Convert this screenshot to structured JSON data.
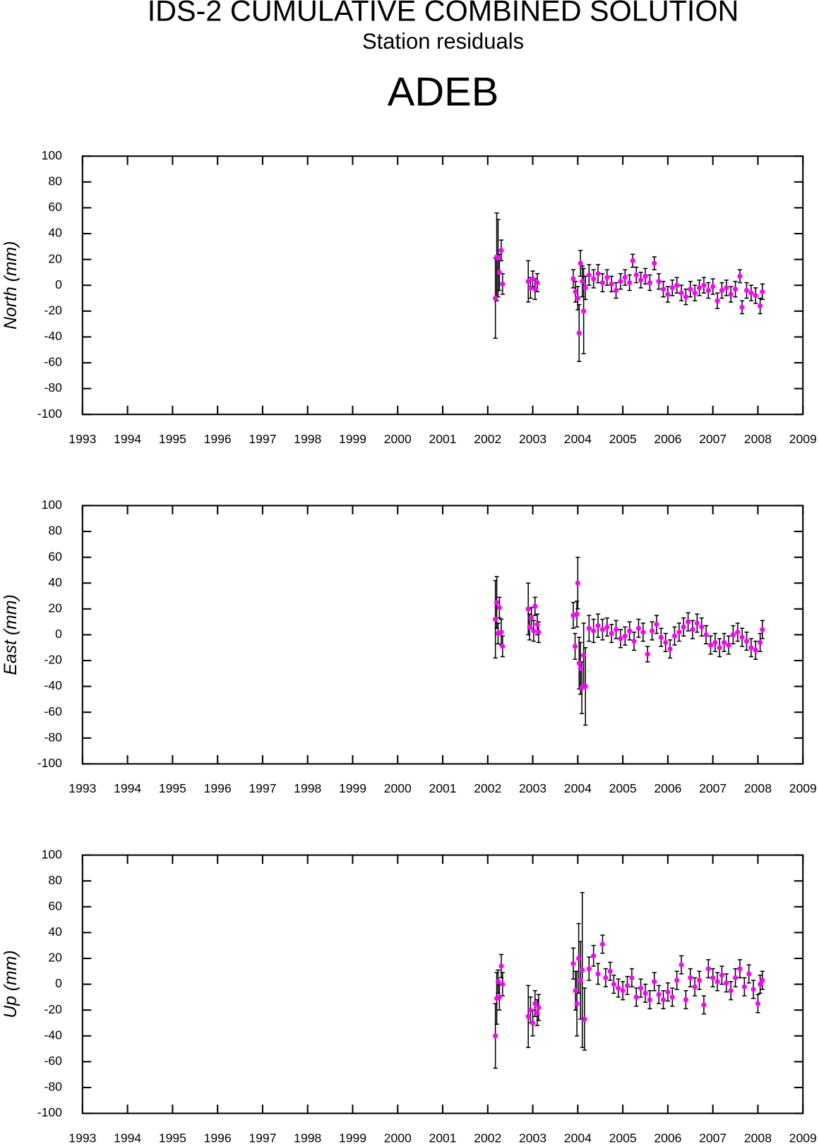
{
  "chart_data": [
    {
      "type": "scatter",
      "title": "IDS-2 CUMULATIVE COMBINED SOLUTION",
      "subtitle": "Station residuals",
      "station": "ADEB",
      "ylabel": "North (mm)",
      "color": "#ff00ff",
      "error_color": "#000000",
      "xlim": [
        1993,
        2009
      ],
      "xticks": [
        1993,
        1994,
        1995,
        1996,
        1997,
        1998,
        1999,
        2000,
        2001,
        2002,
        2003,
        2004,
        2005,
        2006,
        2007,
        2008,
        2009
      ],
      "ylim": [
        -100,
        100
      ],
      "yticks": [
        -100,
        -80,
        -60,
        -40,
        -20,
        0,
        20,
        40,
        60,
        80,
        100
      ],
      "x": [
        2002.17,
        2002.2,
        2002.23,
        2002.26,
        2002.3,
        2002.33,
        2002.9,
        2002.95,
        2003.0,
        2003.05,
        2003.1,
        2003.9,
        2003.95,
        2004.0,
        2004.03,
        2004.06,
        2004.1,
        2004.13,
        2004.17,
        2004.25,
        2004.35,
        2004.45,
        2004.55,
        2004.65,
        2004.75,
        2004.85,
        2004.95,
        2005.05,
        2005.15,
        2005.22,
        2005.3,
        2005.4,
        2005.5,
        2005.6,
        2005.7,
        2005.8,
        2005.9,
        2006.0,
        2006.1,
        2006.2,
        2006.3,
        2006.4,
        2006.5,
        2006.6,
        2006.7,
        2006.8,
        2006.9,
        2007.0,
        2007.1,
        2007.2,
        2007.3,
        2007.4,
        2007.5,
        2007.6,
        2007.65,
        2007.75,
        2007.85,
        2007.95,
        2008.05,
        2008.1
      ],
      "values": [
        -10,
        22,
        21,
        10,
        27,
        1,
        3,
        -2,
        5,
        -3,
        2,
        5,
        -5,
        -10,
        -37,
        17,
        3,
        -20,
        -2,
        8,
        5,
        9,
        2,
        6,
        1,
        -4,
        3,
        6,
        2,
        19,
        8,
        4,
        7,
        2,
        17,
        3,
        -3,
        -7,
        -2,
        0,
        -6,
        -9,
        -3,
        -6,
        -2,
        0,
        -4,
        -1,
        -12,
        -4,
        -2,
        -7,
        -3,
        7,
        -17,
        -4,
        -6,
        -8,
        -16,
        -5
      ],
      "errors": [
        31,
        34,
        30,
        14,
        8,
        8,
        16,
        8,
        6,
        8,
        7,
        7,
        8,
        9,
        22,
        10,
        12,
        33,
        9,
        8,
        7,
        7,
        7,
        6,
        6,
        6,
        6,
        6,
        6,
        5,
        6,
        6,
        6,
        6,
        5,
        6,
        6,
        6,
        6,
        6,
        6,
        6,
        6,
        6,
        6,
        6,
        6,
        6,
        6,
        6,
        6,
        6,
        6,
        5,
        5,
        6,
        6,
        6,
        6,
        6
      ]
    },
    {
      "type": "scatter",
      "ylabel": "East (mm)",
      "color": "#ff00ff",
      "error_color": "#000000",
      "xlim": [
        1993,
        2009
      ],
      "xticks": [
        1993,
        1994,
        1995,
        1996,
        1997,
        1998,
        1999,
        2000,
        2001,
        2002,
        2003,
        2004,
        2005,
        2006,
        2007,
        2008,
        2009
      ],
      "ylim": [
        -100,
        100
      ],
      "yticks": [
        -100,
        -80,
        -60,
        -40,
        -20,
        0,
        20,
        40,
        60,
        80,
        100
      ],
      "x": [
        2002.17,
        2002.2,
        2002.23,
        2002.26,
        2002.3,
        2002.33,
        2002.9,
        2002.93,
        2002.97,
        2003.02,
        2003.05,
        2003.1,
        2003.13,
        2003.9,
        2003.94,
        2003.98,
        2004.0,
        2004.03,
        2004.06,
        2004.09,
        2004.13,
        2004.17,
        2004.25,
        2004.35,
        2004.45,
        2004.55,
        2004.65,
        2004.75,
        2004.85,
        2004.95,
        2005.05,
        2005.15,
        2005.25,
        2005.35,
        2005.45,
        2005.55,
        2005.65,
        2005.75,
        2005.85,
        2005.95,
        2006.05,
        2006.15,
        2006.25,
        2006.35,
        2006.45,
        2006.55,
        2006.65,
        2006.75,
        2006.85,
        2006.95,
        2007.05,
        2007.15,
        2007.25,
        2007.35,
        2007.45,
        2007.55,
        2007.65,
        2007.75,
        2007.85,
        2007.95,
        2008.05,
        2008.1
      ],
      "values": [
        12,
        25,
        1,
        21,
        2,
        -9,
        20,
        6,
        13,
        3,
        22,
        8,
        2,
        15,
        -9,
        16,
        40,
        -22,
        -26,
        -41,
        -16,
        -40,
        5,
        3,
        7,
        4,
        6,
        1,
        4,
        -3,
        -1,
        3,
        -5,
        5,
        2,
        -15,
        3,
        8,
        -2,
        -6,
        -11,
        -1,
        2,
        6,
        10,
        4,
        9,
        6,
        0,
        -8,
        -6,
        -10,
        -6,
        -8,
        0,
        2,
        -2,
        -5,
        -10,
        -12,
        -6,
        4
      ],
      "errors": [
        30,
        20,
        8,
        8,
        10,
        8,
        20,
        10,
        8,
        8,
        7,
        8,
        8,
        10,
        10,
        10,
        20,
        20,
        20,
        20,
        25,
        30,
        10,
        9,
        9,
        8,
        7,
        7,
        7,
        7,
        7,
        7,
        7,
        7,
        7,
        6,
        7,
        7,
        7,
        7,
        7,
        7,
        7,
        7,
        7,
        7,
        7,
        7,
        7,
        7,
        7,
        7,
        7,
        7,
        7,
        7,
        7,
        7,
        7,
        7,
        7,
        7
      ]
    },
    {
      "type": "scatter",
      "ylabel": "Up (mm)",
      "color": "#ff00ff",
      "error_color": "#000000",
      "xlim": [
        1993,
        2009
      ],
      "xticks": [
        1993,
        1994,
        1995,
        1996,
        1997,
        1998,
        1999,
        2000,
        2001,
        2002,
        2003,
        2004,
        2005,
        2006,
        2007,
        2008,
        2009
      ],
      "ylim": [
        -100,
        100
      ],
      "yticks": [
        -100,
        -80,
        -60,
        -40,
        -20,
        0,
        20,
        40,
        60,
        80,
        100
      ],
      "x": [
        2002.17,
        2002.2,
        2002.23,
        2002.26,
        2002.3,
        2002.33,
        2002.9,
        2002.95,
        2003.0,
        2003.05,
        2003.1,
        2003.13,
        2003.9,
        2003.95,
        2003.98,
        2004.02,
        2004.06,
        2004.1,
        2004.15,
        2004.25,
        2004.35,
        2004.45,
        2004.55,
        2004.62,
        2004.72,
        2004.8,
        2004.9,
        2005.0,
        2005.1,
        2005.2,
        2005.3,
        2005.4,
        2005.5,
        2005.6,
        2005.7,
        2005.8,
        2005.9,
        2006.0,
        2006.1,
        2006.2,
        2006.3,
        2006.4,
        2006.5,
        2006.6,
        2006.7,
        2006.8,
        2006.9,
        2007.0,
        2007.1,
        2007.2,
        2007.3,
        2007.4,
        2007.5,
        2007.6,
        2007.7,
        2007.8,
        2007.9,
        2008.0,
        2008.05,
        2008.1
      ],
      "values": [
        -40,
        -11,
        2,
        -10,
        14,
        0,
        -25,
        -20,
        -30,
        -15,
        -22,
        -18,
        16,
        -5,
        -15,
        20,
        3,
        11,
        -27,
        12,
        22,
        8,
        31,
        5,
        10,
        0,
        -3,
        -5,
        -1,
        5,
        -10,
        -3,
        -7,
        -12,
        2,
        -8,
        -12,
        -6,
        -10,
        3,
        15,
        -12,
        5,
        -2,
        3,
        -16,
        12,
        5,
        2,
        7,
        1,
        -5,
        5,
        12,
        -2,
        8,
        -4,
        -15,
        0,
        3
      ],
      "errors": [
        25,
        20,
        9,
        10,
        9,
        9,
        24,
        10,
        10,
        10,
        10,
        10,
        12,
        15,
        25,
        27,
        30,
        60,
        24,
        9,
        8,
        8,
        7,
        7,
        7,
        7,
        7,
        7,
        7,
        7,
        7,
        7,
        7,
        7,
        7,
        7,
        7,
        7,
        7,
        7,
        7,
        7,
        7,
        7,
        7,
        7,
        7,
        7,
        7,
        7,
        7,
        7,
        7,
        7,
        7,
        7,
        7,
        7,
        7,
        7
      ]
    }
  ]
}
